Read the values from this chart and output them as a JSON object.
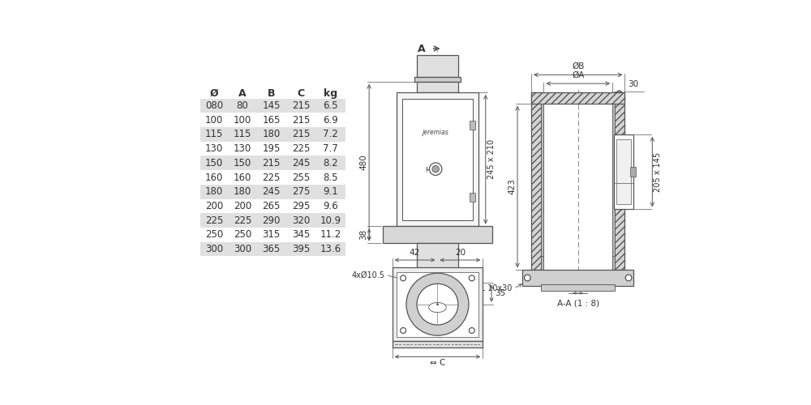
{
  "table_headers": [
    "Ø",
    "A",
    "B",
    "C",
    "kg"
  ],
  "table_rows": [
    [
      "080",
      "80",
      "145",
      "215",
      "6.5"
    ],
    [
      "100",
      "100",
      "165",
      "215",
      "6.9"
    ],
    [
      "115",
      "115",
      "180",
      "215",
      "7.2"
    ],
    [
      "130",
      "130",
      "195",
      "225",
      "7.7"
    ],
    [
      "150",
      "150",
      "215",
      "245",
      "8.2"
    ],
    [
      "160",
      "160",
      "225",
      "255",
      "8.5"
    ],
    [
      "180",
      "180",
      "245",
      "275",
      "9.1"
    ],
    [
      "200",
      "200",
      "265",
      "295",
      "9.6"
    ],
    [
      "225",
      "225",
      "290",
      "320",
      "10.9"
    ],
    [
      "250",
      "250",
      "315",
      "345",
      "11.2"
    ],
    [
      "300",
      "300",
      "365",
      "395",
      "13.6"
    ]
  ],
  "shaded_rows": [
    0,
    2,
    4,
    6,
    8,
    10
  ],
  "table_bg": "#e0e0e0",
  "line_color": "#555555",
  "dim_color": "#555555",
  "text_color": "#333333",
  "bg_color": "#ffffff",
  "hatch_color": "#888888"
}
